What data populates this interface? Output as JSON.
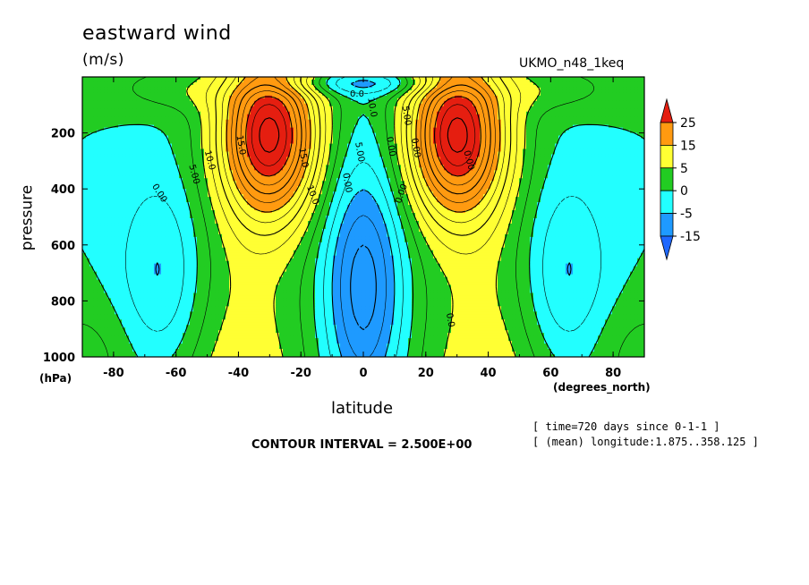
{
  "chart_data": {
    "type": "contour",
    "title": "eastward wind",
    "units": "(m/s)",
    "model_label": "UKMO_n48_1keq",
    "xlabel": "latitude",
    "x_unit_label": "(degrees_north)",
    "ylabel": "pressure",
    "y_unit_label": "(hPa)",
    "xlim": [
      -90,
      90
    ],
    "ylim": [
      1000,
      0
    ],
    "x_ticks": [
      "-80",
      "-60",
      "-40",
      "-20",
      "0",
      "20",
      "40",
      "60",
      "80"
    ],
    "y_ticks": [
      "200",
      "400",
      "600",
      "800",
      "1000"
    ],
    "contour_interval_text": "CONTOUR INTERVAL = 2.500E+00",
    "contour_interval": 2.5,
    "info_lines": [
      "[ time=720 days since 0-1-1 ]",
      "[ (mean) longitude:1.875..358.125 ]"
    ],
    "colorbar": {
      "levels": [
        "25",
        "15",
        "5",
        "0",
        "-5",
        "-15"
      ],
      "fill_levels": [
        25,
        15,
        5,
        0,
        -5,
        -15
      ],
      "colors": [
        "#e51e10",
        "#ff9a10",
        "#ffff33",
        "#22cc22",
        "#22ffff",
        "#1e9aff",
        "#1e68ff"
      ]
    },
    "contour_labels": [
      "0.00",
      "5.00",
      "10.0",
      "15.0",
      "0.00",
      "5.00",
      "10.0",
      "15.0",
      "0.00",
      "0.00",
      "5.00",
      "10.0",
      "0.00",
      "0.00",
      "0.0",
      "0.0"
    ],
    "jets": [
      {
        "lat": -30,
        "pressure": 200,
        "max": 30
      },
      {
        "lat": 30,
        "pressure": 200,
        "max": 30
      }
    ]
  }
}
